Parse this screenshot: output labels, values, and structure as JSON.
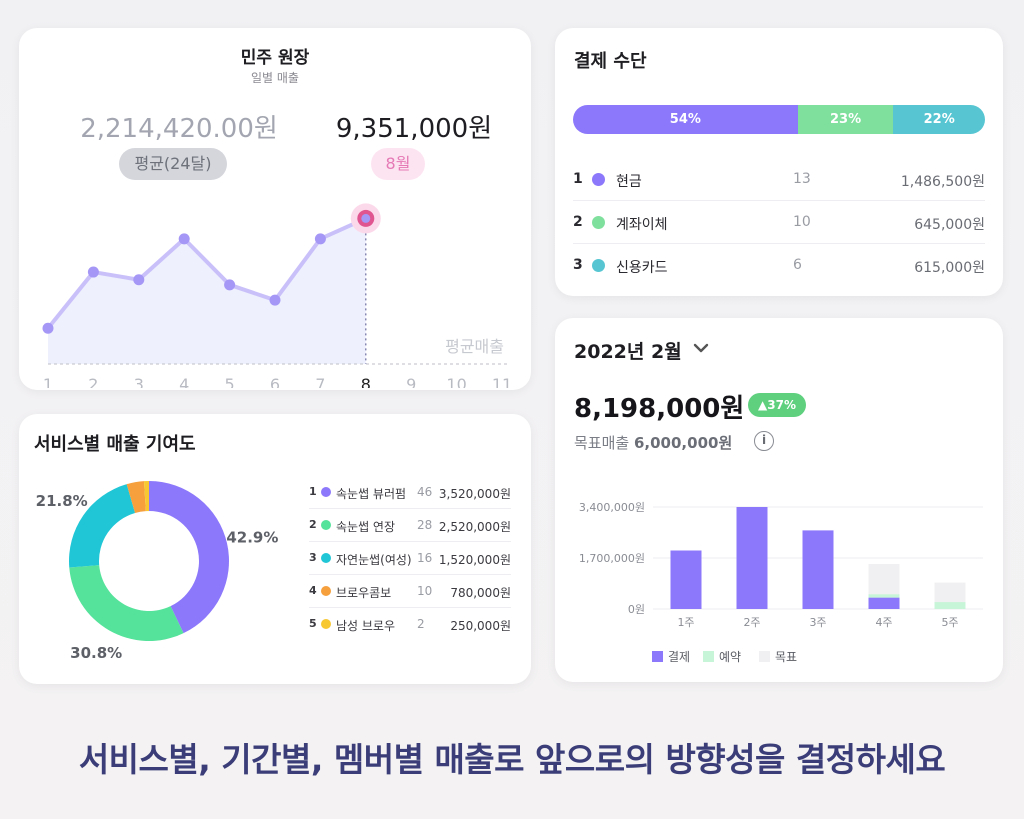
{
  "sales": {
    "title": "민주 원장",
    "subtitle": "일별 매출",
    "avg_amount": "2,214,420.00원",
    "month_amount": "9,351,000원",
    "avg_label": "평균(24달)",
    "month_label": "8월",
    "avg_line_label": "평균매출",
    "x_ticks": [
      "1",
      "2",
      "3",
      "4",
      "5",
      "6",
      "7",
      "8",
      "9",
      "10",
      "11"
    ],
    "accent": "#a597f5",
    "highlight": "#e0558f"
  },
  "service": {
    "title": "서비스별 매출 기여도",
    "slices": [
      {
        "rank": "1",
        "name": "속눈썹 뷰러펌",
        "count": "46",
        "amount": "3,520,000원",
        "color": "#8c78fb",
        "pct": 42.9,
        "pct_label": "42.9%"
      },
      {
        "rank": "2",
        "name": "속눈썹 연장",
        "count": "28",
        "amount": "2,520,000원",
        "color": "#55e29a",
        "pct": 30.8,
        "pct_label": "30.8%"
      },
      {
        "rank": "3",
        "name": "자연눈썹(여성)",
        "count": "16",
        "amount": "1,520,000원",
        "color": "#20c6d6",
        "pct": 21.8,
        "pct_label": "21.8%"
      },
      {
        "rank": "4",
        "name": "브로우콤보",
        "count": "10",
        "amount": "780,000원",
        "color": "#f5a03d",
        "pct": 3.5,
        "pct_label": ""
      },
      {
        "rank": "5",
        "name": "남성 브로우",
        "count": "2",
        "amount": "250,000원",
        "color": "#f7c832",
        "pct": 1.0,
        "pct_label": ""
      }
    ]
  },
  "payment": {
    "title": "결제 수단",
    "bar": [
      {
        "label": "54%",
        "value": 54,
        "color": "#8c78fb"
      },
      {
        "label": "23%",
        "value": 23,
        "color": "#7fdf9d"
      },
      {
        "label": "22%",
        "value": 22,
        "color": "#57c6d2"
      }
    ],
    "rows": [
      {
        "rank": "1",
        "name": "현금",
        "count": "13",
        "amount": "1,486,500원",
        "color": "#8c78fb"
      },
      {
        "rank": "2",
        "name": "계좌이체",
        "count": "10",
        "amount": "645,000원",
        "color": "#7fdf9d"
      },
      {
        "rank": "3",
        "name": "신용카드",
        "count": "6",
        "amount": "615,000원",
        "color": "#57c6d2"
      }
    ]
  },
  "month": {
    "selector": "2022년 2월",
    "chevron_icon": "chevron-down-icon",
    "total": "8,198,000원",
    "growth": "▲37%",
    "target_label": "목표매출",
    "target_value": "6,000,000원",
    "info_icon": "i",
    "legend": [
      {
        "label": "결제",
        "color": "#8c78fb"
      },
      {
        "label": "예약",
        "color": "#c7f5d8"
      },
      {
        "label": "목표",
        "color": "#f0f0f2"
      }
    ]
  },
  "footer": "서비스별, 기간별, 멤버별 매출로 앞으로의 방향성을 결정하세요",
  "chart_data": [
    {
      "type": "line",
      "title": "민주 원장",
      "subtitle": "일별 매출",
      "x": [
        1,
        2,
        3,
        4,
        5,
        6,
        7,
        8
      ],
      "xticks": [
        "1",
        "2",
        "3",
        "4",
        "5",
        "6",
        "7",
        "8",
        "9",
        "10",
        "11"
      ],
      "values": [
        1.4,
        3.6,
        3.3,
        4.9,
        3.1,
        2.5,
        4.9,
        5.7
      ],
      "average": 0,
      "xlim": [
        1,
        11
      ],
      "ylim": [
        0,
        6.5
      ],
      "highlight_index": 7
    },
    {
      "type": "bar",
      "categories": [
        "1주",
        "2주",
        "3주",
        "4주",
        "5주"
      ],
      "yticks": [
        "3,400,000원",
        "1,700,000원",
        "0원"
      ],
      "ylim": [
        0,
        3400000
      ],
      "series": [
        {
          "name": "결제",
          "values": [
            1950000,
            3400000,
            2620000,
            380000,
            0
          ]
        },
        {
          "name": "예약",
          "values": [
            0,
            0,
            0,
            110000,
            230000
          ]
        },
        {
          "name": "목표",
          "values": [
            0,
            0,
            0,
            1500000,
            880000
          ]
        }
      ]
    }
  ]
}
